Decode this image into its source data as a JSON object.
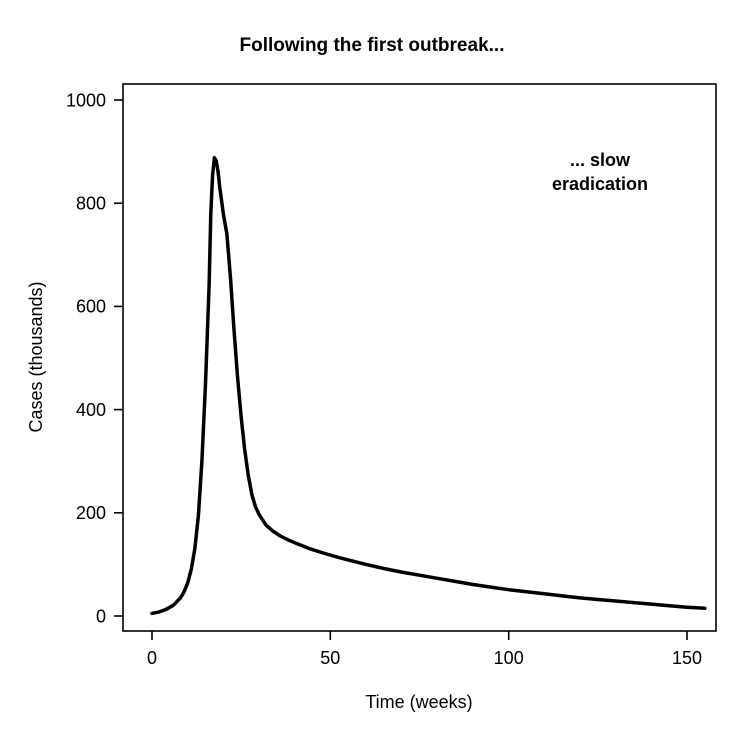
{
  "figure": {
    "background": "#ffffff",
    "text_color": "#000000"
  },
  "chart_data": {
    "type": "line",
    "title": "Following the first outbreak...",
    "xlabel": "Time (weeks)",
    "ylabel": "Cases (thousands)",
    "xlim": [
      0,
      155
    ],
    "ylim": [
      0,
      1000
    ],
    "x_ticks": [
      0,
      50,
      100,
      150
    ],
    "y_ticks": [
      0,
      200,
      400,
      600,
      800,
      1000
    ],
    "grid": false,
    "legend": "none",
    "annotation_lines": [
      "... slow",
      "eradication"
    ],
    "line_color": "#000000",
    "line_width": 3.5,
    "series": [
      {
        "name": "cases-thousands",
        "x": [
          0,
          2,
          4,
          6,
          8,
          9,
          10,
          11,
          12,
          13,
          14,
          15,
          16,
          16.5,
          17,
          17.5,
          18,
          18.5,
          19,
          20,
          21,
          22,
          23,
          24,
          25,
          26,
          27,
          28,
          29,
          30,
          32,
          34,
          36,
          38,
          40,
          44,
          48,
          52,
          56,
          60,
          65,
          70,
          75,
          80,
          85,
          90,
          95,
          100,
          105,
          110,
          115,
          120,
          125,
          130,
          135,
          140,
          145,
          150,
          155
        ],
        "y": [
          5,
          8,
          13,
          21,
          35,
          47,
          64,
          90,
          130,
          195,
          300,
          450,
          640,
          780,
          855,
          888,
          882,
          862,
          830,
          780,
          740,
          655,
          555,
          462,
          385,
          322,
          272,
          235,
          212,
          197,
          176,
          164,
          155,
          148,
          142,
          131,
          122,
          114,
          107,
          100,
          92,
          85,
          79,
          73,
          67,
          61,
          56,
          51,
          47,
          43,
          39,
          35,
          32,
          29,
          26,
          23,
          20,
          17,
          15
        ]
      }
    ]
  }
}
